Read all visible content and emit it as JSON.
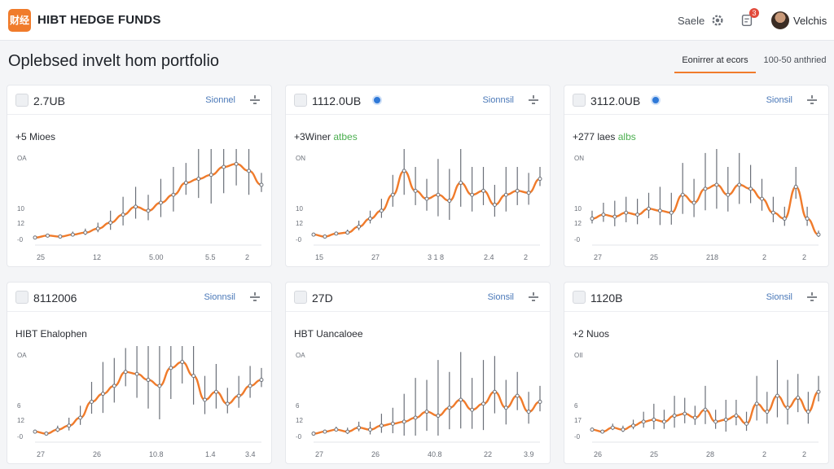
{
  "app": {
    "logo_text": "财经",
    "brand": "HIBT HEDGE FUNDS",
    "nav_link": "Saele",
    "notification_count": "3",
    "user_name": "Velchis",
    "accent_color": "#f07b2b"
  },
  "page": {
    "title": "Oplebsed invelt hom portfolio",
    "tabs": [
      {
        "label": "Eonirrer at ecors",
        "active": true
      },
      {
        "label": "100-50 anthried",
        "active": false
      }
    ]
  },
  "cards": [
    {
      "id": "2.7UB",
      "has_info": false,
      "action": "Sionnel",
      "subtitle": "+5 Mioes",
      "subtitle_hl": "",
      "chart_data": {
        "type": "line",
        "y_tick_labels": [
          "OA",
          "10",
          "12",
          "-0"
        ],
        "x_tick_labels": [
          "25",
          "12",
          "5.00",
          "5.5",
          "2"
        ],
        "series": [
          {
            "color": "#f07b2b",
            "values": [
              0.5,
              1.5,
              1.0,
              2.0,
              3.0,
              5.0,
              8.0,
              12.0,
              16.0,
              14.0,
              18.0,
              22.0,
              28.0,
              30.0,
              32.0,
              36.0,
              37.5,
              34.0,
              27.0
            ]
          }
        ],
        "error": [
          0.5,
          0.5,
          0.8,
          1.5,
          2.0,
          3.0,
          6.0,
          9.0,
          10.0,
          8.0,
          12.0,
          14.0,
          10.0,
          16.0,
          24.0,
          22.0,
          18.0,
          20.0,
          6.0
        ],
        "ylim": [
          0,
          45
        ]
      }
    },
    {
      "id": "1112.0UB",
      "has_info": true,
      "action": "Sionnsil",
      "subtitle": "+3Winer",
      "subtitle_hl": "atbes",
      "chart_data": {
        "type": "line",
        "y_tick_labels": [
          "ON",
          "10",
          "12",
          "-0"
        ],
        "x_tick_labels": [
          "15",
          "27",
          "3 1 8",
          "2.4",
          "2"
        ],
        "series": [
          {
            "color": "#f07b2b",
            "values": [
              2.0,
              1.0,
              2.5,
              3.0,
              6.0,
              10.0,
              14.0,
              22.0,
              34.0,
              24.0,
              20.0,
              22.0,
              19.0,
              28.0,
              22.0,
              24.0,
              17.0,
              22.0,
              24.0,
              23.0,
              30.0
            ]
          }
        ],
        "error": [
          0.5,
          0.5,
          1.0,
          1.5,
          3.0,
          4.0,
          6.0,
          10.0,
          20.0,
          12.0,
          10.0,
          18.0,
          16.0,
          20.0,
          14.0,
          12.0,
          10.0,
          14.0,
          12.0,
          10.0,
          6.0
        ],
        "ylim": [
          0,
          45
        ]
      }
    },
    {
      "id": "3112.0UB",
      "has_info": true,
      "action": "Sionsil",
      "subtitle": "+277 laes",
      "subtitle_hl": "albs",
      "chart_data": {
        "type": "line",
        "y_tick_labels": [
          "ON",
          "10",
          "12",
          "-0"
        ],
        "x_tick_labels": [
          "27",
          "25",
          "218",
          "2",
          "2"
        ],
        "series": [
          {
            "color": "#f07b2b",
            "values": [
              10.0,
              12.0,
              11.0,
              13.0,
              12.0,
              15.0,
              14.0,
              13.0,
              22.0,
              18.0,
              25.0,
              27.0,
              22.0,
              27.0,
              25.0,
              20.0,
              13.0,
              10.0,
              26.0,
              10.0,
              2.0
            ]
          }
        ],
        "error": [
          4.0,
          6.0,
          8.0,
          8.0,
          8.0,
          8.0,
          12.0,
          10.0,
          16.0,
          12.0,
          18.0,
          20.0,
          14.0,
          16.0,
          12.0,
          10.0,
          8.0,
          6.0,
          10.0,
          6.0,
          2.0
        ],
        "ylim": [
          0,
          45
        ]
      }
    },
    {
      "id": "8112006",
      "has_info": false,
      "action": "Sionnsil",
      "subtitle": "HIBT Ehalophen",
      "subtitle_hl": "",
      "chart_data": {
        "type": "line",
        "y_tick_labels": [
          "OA",
          "6",
          "12",
          "-0"
        ],
        "x_tick_labels": [
          "27",
          "26",
          "10.8",
          "1.4",
          "3.4"
        ],
        "series": [
          {
            "color": "#f07b2b",
            "values": [
              2.0,
              1.0,
              3.0,
              5.0,
              9.0,
              17.0,
              21.0,
              25.0,
              32.0,
              31.0,
              28.0,
              25.0,
              34.0,
              37.0,
              30.0,
              18.0,
              22.0,
              16.0,
              20.0,
              25.0,
              28.0
            ]
          }
        ],
        "error": [
          1.0,
          1.0,
          2.0,
          4.0,
          6.0,
          10.0,
          16.0,
          14.0,
          12.0,
          20.0,
          24.0,
          28.0,
          26.0,
          18.0,
          24.0,
          12.0,
          14.0,
          8.0,
          10.0,
          10.0,
          6.0
        ],
        "ylim": [
          0,
          45
        ]
      }
    },
    {
      "id": "27D",
      "has_info": false,
      "action": "Sionsil",
      "subtitle": "HBT Uancaloee",
      "subtitle_hl": "",
      "chart_data": {
        "type": "line",
        "y_tick_labels": [
          "OA",
          "6",
          "12",
          "-0"
        ],
        "x_tick_labels": [
          "27",
          "26",
          "40.8",
          "22",
          "3.9"
        ],
        "series": [
          {
            "color": "#f07b2b",
            "values": [
              1.0,
              2.0,
              3.0,
              2.0,
              4.0,
              3.0,
              5.0,
              6.0,
              7.0,
              9.0,
              12.0,
              10.0,
              14.0,
              18.0,
              13.0,
              16.0,
              22.0,
              14.0,
              20.0,
              12.0,
              17.0
            ]
          }
        ],
        "error": [
          0.5,
          1.0,
          1.5,
          2.0,
          3.0,
          4.0,
          6.0,
          8.0,
          14.0,
          20.0,
          16.0,
          28.0,
          18.0,
          24.0,
          16.0,
          22.0,
          18.0,
          14.0,
          12.0,
          10.0,
          8.0
        ],
        "ylim": [
          0,
          45
        ]
      }
    },
    {
      "id": "1120B",
      "has_info": false,
      "action": "Sionsil",
      "subtitle": "+2 Nuos",
      "subtitle_hl": "",
      "chart_data": {
        "type": "line",
        "y_tick_labels": [
          "OII",
          "6",
          "17",
          "-0"
        ],
        "x_tick_labels": [
          "26",
          "25",
          "28",
          "2",
          "2"
        ],
        "series": [
          {
            "color": "#f07b2b",
            "values": [
              3.0,
              2.0,
              4.0,
              3.0,
              5.0,
              7.0,
              8.0,
              7.0,
              10.0,
              11.0,
              9.0,
              13.0,
              7.0,
              8.0,
              10.0,
              6.0,
              16.0,
              12.0,
              20.0,
              14.0,
              19.0,
              12.0,
              22.0
            ]
          }
        ],
        "error": [
          1.0,
          1.0,
          2.0,
          2.0,
          3.0,
          5.0,
          8.0,
          6.0,
          10.0,
          8.0,
          6.0,
          12.0,
          6.0,
          10.0,
          8.0,
          6.0,
          14.0,
          10.0,
          18.0,
          14.0,
          12.0,
          10.0,
          8.0
        ],
        "ylim": [
          0,
          45
        ]
      }
    }
  ]
}
